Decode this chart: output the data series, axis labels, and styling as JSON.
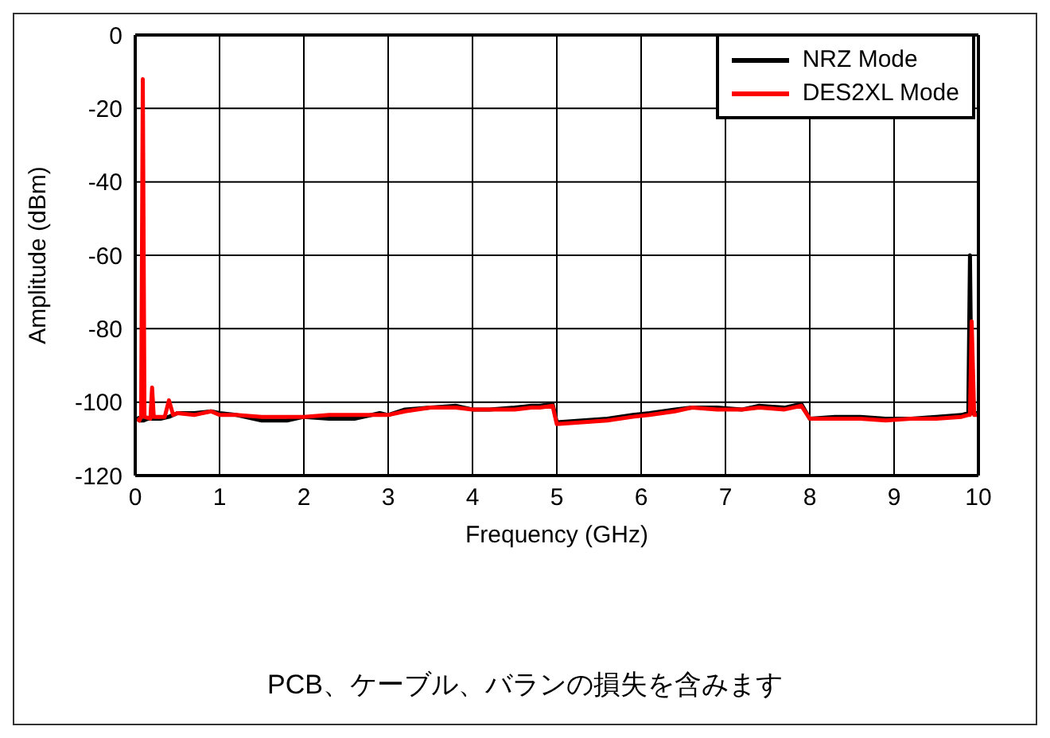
{
  "chart_data": {
    "type": "line",
    "xlabel": "Frequency (GHz)",
    "ylabel": "Amplitude (dBm)",
    "annotations": [
      "PCB、ケーブル、バランの損失を含みます"
    ],
    "xlim": [
      0,
      10
    ],
    "xticks": [
      0,
      1,
      2,
      3,
      4,
      5,
      6,
      7,
      8,
      9,
      10
    ],
    "ylim": [
      -120,
      0
    ],
    "yticks": [
      -120,
      -100,
      -80,
      -60,
      -40,
      -20,
      0
    ],
    "grid": true,
    "legend": "top right",
    "marker": "none",
    "line_style": "solid",
    "series": [
      {
        "name": "NRZ Mode",
        "color": "#000000",
        "x": [
          0.02,
          0.05,
          0.1,
          0.15,
          0.3,
          0.4,
          0.5,
          0.7,
          0.9,
          1.0,
          1.2,
          1.5,
          1.8,
          2.0,
          2.3,
          2.6,
          2.9,
          3.0,
          3.2,
          3.5,
          3.8,
          4.0,
          4.2,
          4.5,
          4.7,
          4.8,
          4.95,
          5.0,
          5.3,
          5.6,
          5.9,
          6.1,
          6.4,
          6.6,
          6.9,
          7.2,
          7.4,
          7.7,
          7.9,
          8.0,
          8.3,
          8.6,
          8.9,
          9.2,
          9.5,
          9.8,
          9.88,
          9.9,
          9.92,
          9.95,
          10
        ],
        "values": [
          -104,
          -105,
          -105,
          -104.5,
          -104.5,
          -104,
          -103,
          -103,
          -102.5,
          -103,
          -103.5,
          -105,
          -105,
          -104,
          -104.5,
          -104.5,
          -103,
          -103.5,
          -102,
          -101.5,
          -101,
          -102,
          -102,
          -101.5,
          -101,
          -101,
          -100.5,
          -105.5,
          -105,
          -104.5,
          -103.5,
          -103,
          -102,
          -101.5,
          -101.5,
          -102,
          -101,
          -101.5,
          -100.5,
          -104.5,
          -104,
          -104,
          -104.5,
          -104.5,
          -104,
          -103.5,
          -103,
          -60,
          -103,
          -103,
          -103
        ]
      },
      {
        "name": "DES2XL Mode",
        "color": "#ff0000",
        "x": [
          0.02,
          0.05,
          0.07,
          0.09,
          0.11,
          0.18,
          0.2,
          0.22,
          0.35,
          0.4,
          0.45,
          0.5,
          0.7,
          0.9,
          1.0,
          1.2,
          1.5,
          1.8,
          2.0,
          2.3,
          2.6,
          2.9,
          3.0,
          3.2,
          3.5,
          3.8,
          4.0,
          4.2,
          4.5,
          4.7,
          4.8,
          4.95,
          5.0,
          5.3,
          5.6,
          5.9,
          6.1,
          6.4,
          6.6,
          6.9,
          7.2,
          7.4,
          7.7,
          7.9,
          8.0,
          8.3,
          8.6,
          8.9,
          9.2,
          9.5,
          9.8,
          9.88,
          9.9,
          9.92,
          9.95,
          10
        ],
        "values": [
          -104.5,
          -105,
          -104,
          -12,
          -104,
          -104.5,
          -96,
          -104,
          -104,
          -99.5,
          -103.5,
          -103,
          -103.5,
          -102.5,
          -103.5,
          -103.5,
          -104,
          -104,
          -104,
          -103.5,
          -103.5,
          -103.5,
          -103.5,
          -102.5,
          -101.5,
          -101.5,
          -102,
          -102,
          -102,
          -101.5,
          -101.5,
          -101,
          -106,
          -105.5,
          -105,
          -104,
          -103.5,
          -102.5,
          -101.5,
          -102,
          -102,
          -101.5,
          -102,
          -101,
          -104.5,
          -104.5,
          -104.5,
          -105,
          -104.5,
          -104.5,
          -104,
          -103.5,
          -103.5,
          -78,
          -103.5,
          -103.5
        ]
      }
    ]
  }
}
